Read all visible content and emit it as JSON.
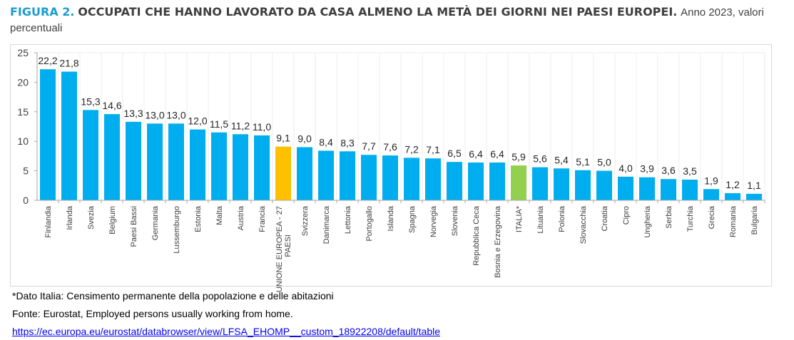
{
  "title": {
    "figure": "FIGURA 2.",
    "main": "OCCUPATI CHE HANNO LAVORATO DA CASA ALMENO LA METÀ DEI GIORNI NEI PAESI EUROPEI.",
    "subtitle": "Anno 2023, valori percentuali"
  },
  "colors": {
    "default": "#00aeef",
    "eu": "#ffc000",
    "italy": "#92d050",
    "title_accent": "#1b9cd0"
  },
  "chart_data": {
    "type": "bar",
    "categories": [
      "Finlandia",
      "Irlanda",
      "Svezia",
      "Belgium",
      "Paesi Bassi",
      "Germania",
      "Lussemburgo",
      "Estonia",
      "Malta",
      "Austria",
      "Francia",
      "UNIONE EUROPEA - 27 PAESI",
      "Svizzera",
      "Danimarca",
      "Lettonia",
      "Portogallo",
      "Islanda",
      "Spagna",
      "Norvegia",
      "Slovenia",
      "Repubblica Ceca",
      "Bosnia e Erzegovina",
      "ITALIA*",
      "Lituania",
      "Polonia",
      "Slovacchia",
      "Croatia",
      "Cipro",
      "Ungheria",
      "Serbia",
      "Turchia",
      "Grecia",
      "Romania",
      "Bulgaria"
    ],
    "values": [
      22.2,
      21.8,
      15.3,
      14.6,
      13.3,
      13.0,
      13.0,
      12.0,
      11.5,
      11.2,
      11.0,
      9.1,
      9.0,
      8.4,
      8.3,
      7.7,
      7.6,
      7.2,
      7.1,
      6.5,
      6.4,
      6.4,
      5.9,
      5.6,
      5.4,
      5.1,
      5.0,
      4.0,
      3.9,
      3.6,
      3.5,
      1.9,
      1.2,
      1.1
    ],
    "highlight": {
      "UNIONE EUROPEA - 27 PAESI": "eu",
      "ITALIA*": "italy"
    },
    "yticks": [
      "0",
      "5",
      "10",
      "15",
      "20",
      "25"
    ],
    "ylim": [
      0,
      25
    ],
    "grid": true,
    "data_labels": true,
    "decimal_separator": ","
  },
  "footer": {
    "note": "*Dato Italia: Censimento permanente della popolazione e delle abitazioni",
    "source": "Fonte: Eurostat, Employed persons usually working from home.",
    "link": "https://ec.europa.eu/eurostat/databrowser/view/LFSA_EHOMP__custom_18922208/default/table"
  }
}
